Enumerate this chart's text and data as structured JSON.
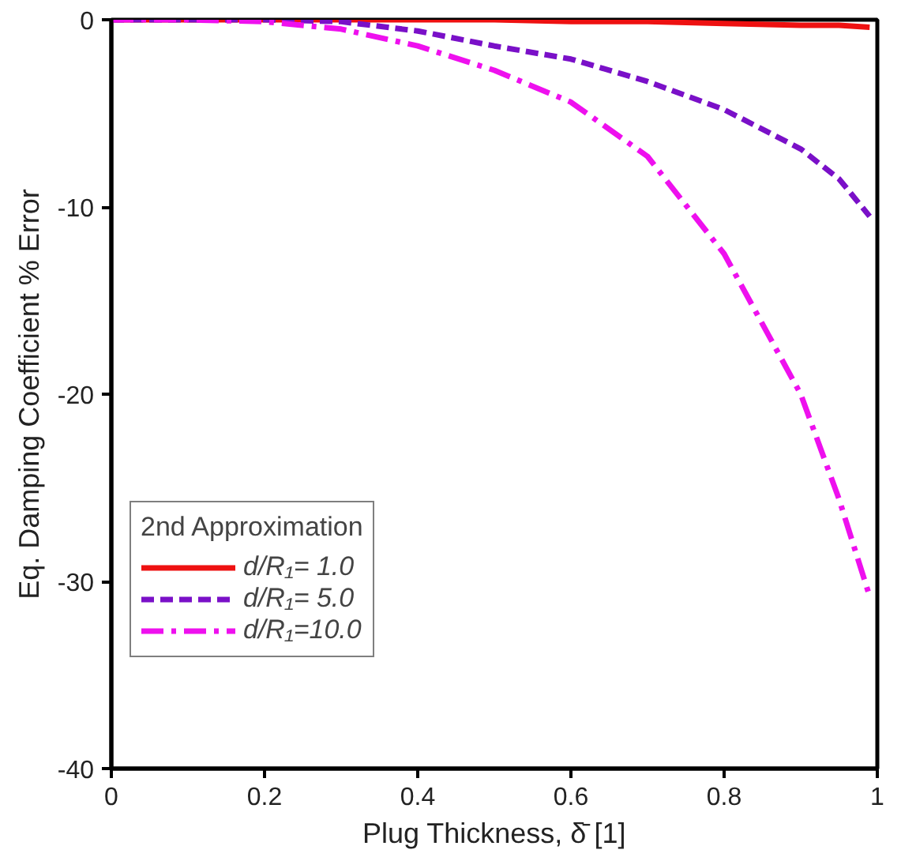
{
  "chart_data": {
    "type": "line",
    "xlabel": "Plug Thickness, δ̄ [1]",
    "ylabel": "Eq. Damping Coefficient % Error",
    "legend_title": "2nd Approximation",
    "x": [
      0,
      0.1,
      0.2,
      0.3,
      0.4,
      0.5,
      0.6,
      0.7,
      0.8,
      0.9,
      0.95,
      0.99
    ],
    "series": [
      {
        "name": "d/R₁= 1.0",
        "color": "#ee1111",
        "line_style": "solid",
        "values": [
          0,
          0,
          0,
          0,
          0,
          0,
          -0.1,
          -0.1,
          -0.2,
          -0.3,
          -0.3,
          -0.4
        ]
      },
      {
        "name": "d/R₁= 5.0",
        "color": "#7a10c8",
        "line_style": "dashed",
        "values": [
          0,
          0,
          0,
          -0.1,
          -0.6,
          -1.4,
          -2.1,
          -3.3,
          -4.8,
          -6.9,
          -8.5,
          -10.5
        ]
      },
      {
        "name": "d/R₁=10.0",
        "color": "#ee10ee",
        "line_style": "dashdot",
        "values": [
          0,
          0,
          -0.1,
          -0.5,
          -1.4,
          -2.7,
          -4.4,
          -7.3,
          -12.5,
          -20,
          -25.6,
          -30.8
        ]
      }
    ],
    "xlim": [
      0,
      1
    ],
    "ylim": [
      -40,
      0
    ],
    "xticks": [
      0,
      0.2,
      0.4,
      0.6,
      0.8,
      1
    ],
    "yticks": [
      -40,
      -30,
      -20,
      -10,
      0
    ],
    "grid": false,
    "legend": "left",
    "marker": "none"
  }
}
